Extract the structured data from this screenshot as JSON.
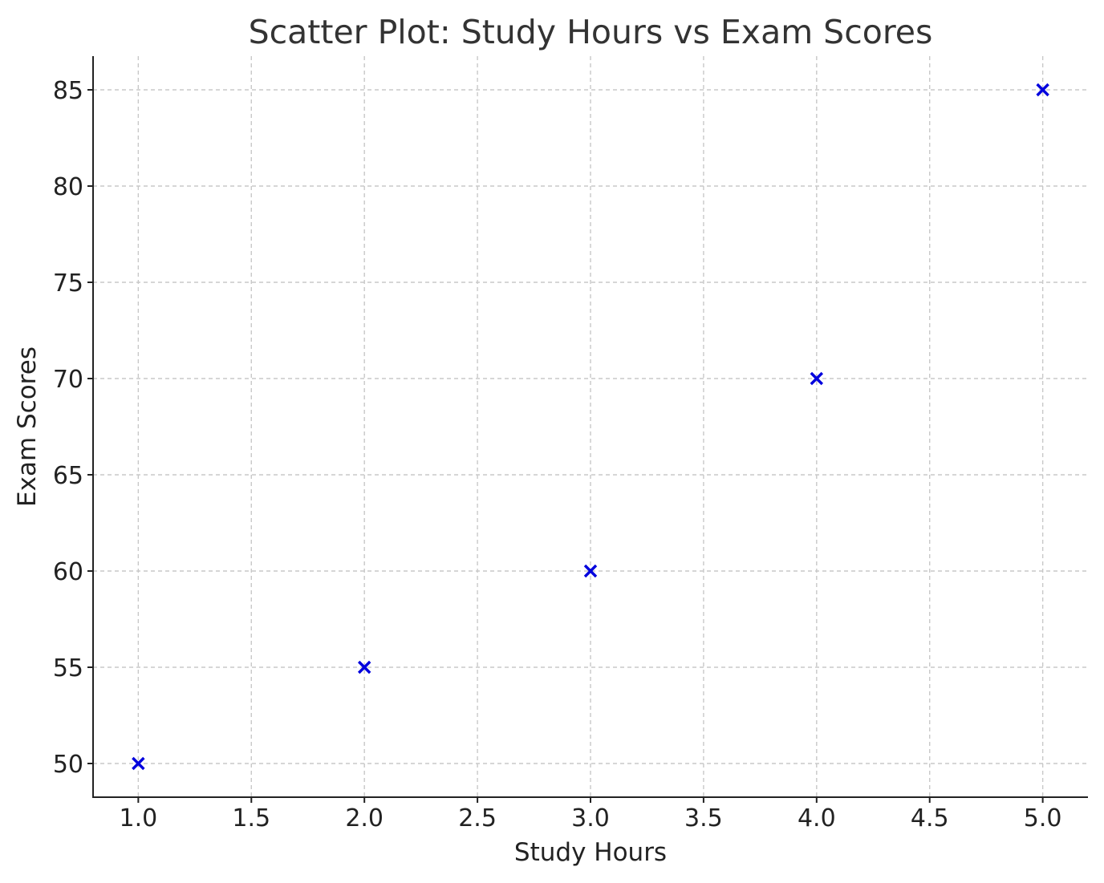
{
  "chart_data": {
    "type": "scatter",
    "title": "Scatter Plot: Study Hours vs Exam Scores",
    "xlabel": "Study Hours",
    "ylabel": "Exam Scores",
    "series": [
      {
        "name": "Exam Scores",
        "x": [
          1.0,
          2.0,
          3.0,
          4.0,
          5.0
        ],
        "y": [
          50,
          55,
          60,
          70,
          85
        ],
        "marker": "x",
        "color": "#0000dd"
      }
    ],
    "xlim": [
      0.8,
      5.2
    ],
    "ylim": [
      48.25,
      86.75
    ],
    "xticks": [
      1.0,
      1.5,
      2.0,
      2.5,
      3.0,
      3.5,
      4.0,
      4.5,
      5.0
    ],
    "xtick_labels": [
      "1.0",
      "1.5",
      "2.0",
      "2.5",
      "3.0",
      "3.5",
      "4.0",
      "4.5",
      "5.0"
    ],
    "yticks": [
      50,
      55,
      60,
      65,
      70,
      75,
      80,
      85
    ],
    "ytick_labels": [
      "50",
      "55",
      "60",
      "65",
      "70",
      "75",
      "80",
      "85"
    ],
    "grid": true,
    "grid_style": "dashed",
    "spines": [
      "left",
      "bottom"
    ]
  },
  "colors": {
    "marker": "#0000dd",
    "grid": "#c8c8c8",
    "axis": "#222222",
    "title": "#333333"
  }
}
